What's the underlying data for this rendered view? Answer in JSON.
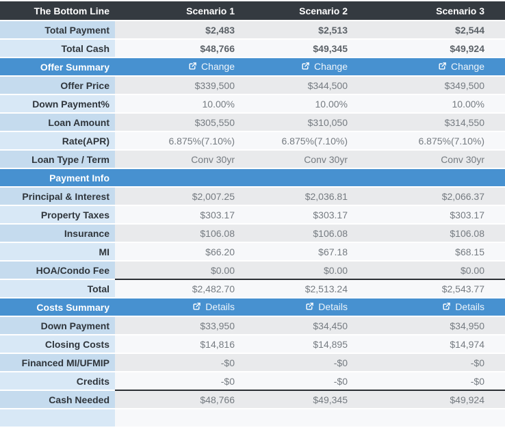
{
  "table": {
    "header": {
      "label": "The Bottom Line",
      "columns": [
        "Scenario 1",
        "Scenario 2",
        "Scenario 3"
      ]
    },
    "rows": [
      {
        "type": "data",
        "label": "Total Payment",
        "values": [
          "$2,483",
          "$2,513",
          "$2,544"
        ],
        "emphasis": true
      },
      {
        "type": "data",
        "label": "Total Cash",
        "values": [
          "$48,766",
          "$49,345",
          "$49,924"
        ],
        "emphasis": true
      },
      {
        "type": "section",
        "label": "Offer Summary",
        "link_label": "Change",
        "link_icon": "external-link-icon"
      },
      {
        "type": "data",
        "label": "Offer Price",
        "values": [
          "$339,500",
          "$344,500",
          "$349,500"
        ]
      },
      {
        "type": "data",
        "label": "Down Payment%",
        "values": [
          "10.00%",
          "10.00%",
          "10.00%"
        ]
      },
      {
        "type": "data",
        "label": "Loan Amount",
        "values": [
          "$305,550",
          "$310,050",
          "$314,550"
        ]
      },
      {
        "type": "data",
        "label": "Rate(APR)",
        "values": [
          "6.875%(7.10%)",
          "6.875%(7.10%)",
          "6.875%(7.10%)"
        ]
      },
      {
        "type": "data",
        "label": "Loan Type / Term",
        "values": [
          "Conv 30yr",
          "Conv 30yr",
          "Conv 30yr"
        ]
      },
      {
        "type": "section",
        "label": "Payment Info"
      },
      {
        "type": "data",
        "label": "Principal & Interest",
        "values": [
          "$2,007.25",
          "$2,036.81",
          "$2,066.37"
        ]
      },
      {
        "type": "data",
        "label": "Property Taxes",
        "values": [
          "$303.17",
          "$303.17",
          "$303.17"
        ]
      },
      {
        "type": "data",
        "label": "Insurance",
        "values": [
          "$106.08",
          "$106.08",
          "$106.08"
        ]
      },
      {
        "type": "data",
        "label": "MI",
        "values": [
          "$66.20",
          "$67.18",
          "$68.15"
        ]
      },
      {
        "type": "data",
        "label": "HOA/Condo Fee",
        "values": [
          "$0.00",
          "$0.00",
          "$0.00"
        ]
      },
      {
        "type": "data",
        "label": "Total",
        "values": [
          "$2,482.70",
          "$2,513.24",
          "$2,543.77"
        ],
        "top_border": true
      },
      {
        "type": "section",
        "label": "Costs Summary",
        "link_label": "Details",
        "link_icon": "external-link-icon"
      },
      {
        "type": "data",
        "label": "Down Payment",
        "values": [
          "$33,950",
          "$34,450",
          "$34,950"
        ]
      },
      {
        "type": "data",
        "label": "Closing Costs",
        "values": [
          "$14,816",
          "$14,895",
          "$14,974"
        ]
      },
      {
        "type": "data",
        "label": "Financed MI/UFMIP",
        "values": [
          "-$0",
          "-$0",
          "-$0"
        ]
      },
      {
        "type": "data",
        "label": "Credits",
        "values": [
          "-$0",
          "-$0",
          "-$0"
        ]
      },
      {
        "type": "data",
        "label": "Cash Needed",
        "values": [
          "$48,766",
          "$49,345",
          "$49,924"
        ],
        "top_border": true
      }
    ],
    "colors": {
      "header_bg": "#343a40",
      "section_bg": "#4791d0",
      "label_stripe_dark": "#c5dbee",
      "label_stripe_light": "#d8e8f6",
      "value_stripe_dark": "#e9eaec",
      "value_stripe_light": "#f7f8fa",
      "total_border": "#2a2e33"
    }
  }
}
